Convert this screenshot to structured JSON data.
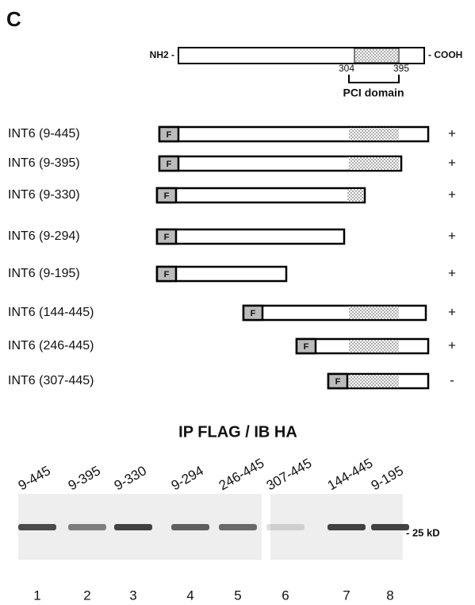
{
  "panel_label": "C",
  "protein": {
    "n_term": "NH2 -",
    "c_term": "- COOH",
    "domain_start": "304",
    "domain_end": "395",
    "domain_label": "PCI domain"
  },
  "constructs": [
    {
      "name": "INT6 (9-445)",
      "tag": "F",
      "result": "+"
    },
    {
      "name": "INT6 (9-395)",
      "tag": "F",
      "result": "+"
    },
    {
      "name": "INT6 (9-330)",
      "tag": "F",
      "result": "+"
    },
    {
      "name": "INT6 (9-294)",
      "tag": "F",
      "result": "+"
    },
    {
      "name": "INT6 (9-195)",
      "tag": "F",
      "result": "+"
    },
    {
      "name": "INT6 (144-445)",
      "tag": "F",
      "result": "+"
    },
    {
      "name": "INT6 (246-445)",
      "tag": "F",
      "result": "+"
    },
    {
      "name": "INT6 (307-445)",
      "tag": "F",
      "result": "-"
    }
  ],
  "blot": {
    "title": "IP FLAG / IB HA",
    "marker": "- 25 kD",
    "lanes": [
      {
        "label": "9-445",
        "number": "1"
      },
      {
        "label": "9-395",
        "number": "2"
      },
      {
        "label": "9-330",
        "number": "3"
      },
      {
        "label": "9-294",
        "number": "4"
      },
      {
        "label": "246-445",
        "number": "5"
      },
      {
        "label": "307-445",
        "number": "6"
      },
      {
        "label": "144-445",
        "number": "7"
      },
      {
        "label": "9-195",
        "number": "8"
      }
    ]
  }
}
